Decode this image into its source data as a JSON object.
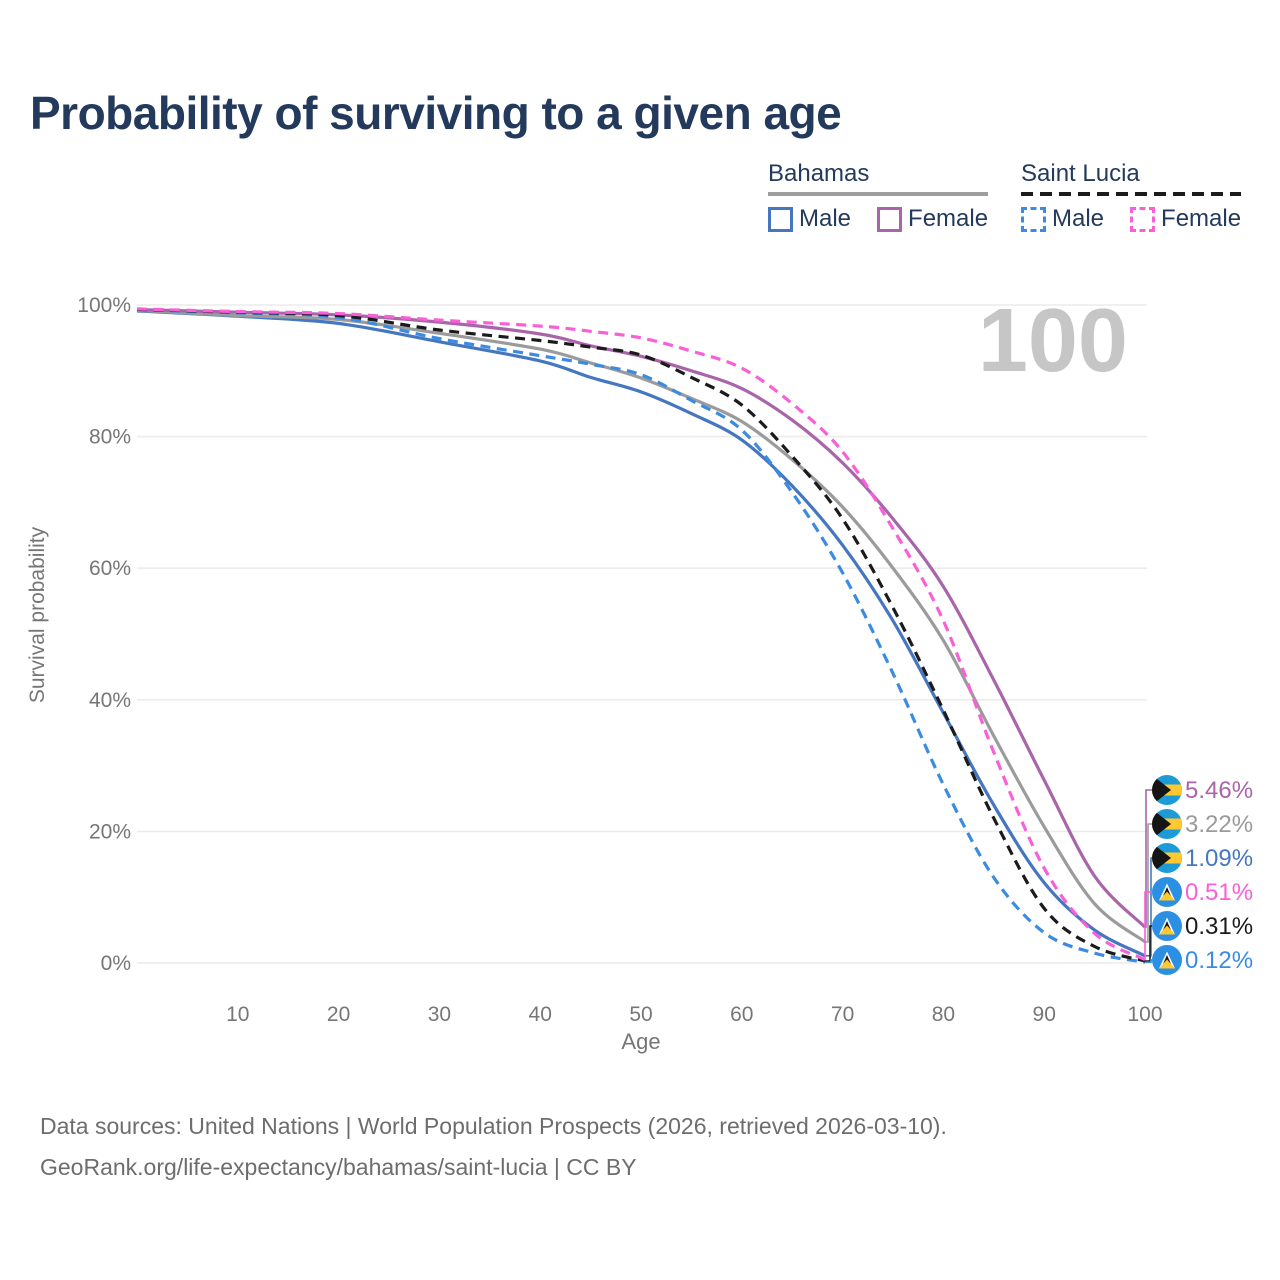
{
  "title": "Probability of surviving to a given age",
  "legend": {
    "groups": [
      {
        "name": "Bahamas",
        "line_style": "solid",
        "underline_color": "#9e9e9e",
        "items": [
          {
            "label": "Male",
            "color": "#4577c0",
            "dashed": false
          },
          {
            "label": "Female",
            "color": "#a965a9",
            "dashed": false
          }
        ]
      },
      {
        "name": "Saint Lucia",
        "line_style": "dashed",
        "underline_color": "#1b1b1b",
        "items": [
          {
            "label": "Male",
            "color": "#3b8be2",
            "dashed": true
          },
          {
            "label": "Female",
            "color": "#f960d8",
            "dashed": true
          }
        ]
      }
    ]
  },
  "watermark": "100",
  "chart_data": {
    "type": "line",
    "title": "Probability of surviving to a given age",
    "xlabel": "Age",
    "ylabel": "Survival probability",
    "xlim": [
      0,
      100
    ],
    "ylim": [
      0,
      100
    ],
    "grid": "horizontal",
    "x_ticks": [
      10,
      20,
      30,
      40,
      50,
      60,
      70,
      80,
      90,
      100
    ],
    "y_tick_labels": [
      "0%",
      "20%",
      "40%",
      "60%",
      "80%",
      "100%"
    ],
    "y_tick_values": [
      0,
      20,
      40,
      60,
      80,
      100
    ],
    "ages": [
      0,
      10,
      20,
      30,
      40,
      45,
      50,
      55,
      60,
      65,
      70,
      75,
      80,
      85,
      90,
      95,
      100
    ],
    "series": [
      {
        "name": "Bahamas Female",
        "country": "bahamas",
        "sex": "female",
        "color": "#a965a9",
        "dashed": false,
        "end_label": "5.46%",
        "values": [
          99.3,
          98.9,
          98.5,
          97.4,
          95.6,
          93.8,
          92.2,
          90.0,
          87.3,
          82.5,
          76.0,
          67.5,
          57.2,
          43.0,
          27.8,
          13.2,
          5.46
        ]
      },
      {
        "name": "Bahamas Both sexes",
        "country": "bahamas",
        "sex": "total",
        "color": "#9b9b9b",
        "dashed": false,
        "end_label": "3.22%",
        "values": [
          99.2,
          98.4,
          97.8,
          95.7,
          93.3,
          91.2,
          88.9,
          85.8,
          82.3,
          76.5,
          69.3,
          60.0,
          49.0,
          34.5,
          20.7,
          9.0,
          3.22
        ]
      },
      {
        "name": "Bahamas Male",
        "country": "bahamas",
        "sex": "male",
        "color": "#4577c0",
        "dashed": false,
        "end_label": "1.09%",
        "values": [
          99.1,
          98.3,
          97.2,
          94.4,
          91.5,
          89.0,
          86.8,
          83.5,
          79.5,
          72.5,
          63.5,
          52.0,
          38.0,
          24.0,
          12.2,
          5.0,
          1.09
        ]
      },
      {
        "name": "Saint Lucia Female",
        "country": "saint-lucia",
        "sex": "female",
        "color": "#f960d8",
        "dashed": true,
        "end_label": "0.51%",
        "values": [
          99.4,
          99.0,
          98.7,
          97.7,
          96.8,
          96.0,
          95.0,
          93.0,
          90.4,
          85.0,
          77.7,
          66.0,
          52.0,
          32.0,
          14.4,
          4.5,
          0.51
        ]
      },
      {
        "name": "Saint Lucia Both sexes",
        "country": "saint-lucia",
        "sex": "total",
        "color": "#1b1b1b",
        "dashed": true,
        "end_label": "0.31%",
        "values": [
          99.35,
          98.9,
          98.4,
          96.2,
          94.6,
          93.6,
          92.4,
          89.0,
          84.8,
          77.0,
          67.5,
          54.0,
          38.4,
          22.0,
          8.3,
          2.5,
          0.31
        ]
      },
      {
        "name": "Saint Lucia Male",
        "country": "saint-lucia",
        "sex": "male",
        "color": "#3b8be2",
        "dashed": true,
        "end_label": "0.12%",
        "values": [
          99.3,
          98.8,
          98.1,
          94.9,
          92.3,
          91.0,
          89.4,
          85.5,
          81.0,
          71.5,
          59.3,
          44.0,
          27.1,
          13.0,
          4.6,
          1.5,
          0.12
        ]
      }
    ],
    "end_labels": [
      "5.46%",
      "3.22%",
      "1.09%",
      "0.51%",
      "0.31%",
      "0.12%"
    ],
    "watermark": "100",
    "legend_position": "top-right"
  },
  "flag_colors": {
    "bahamas": {
      "band": "#1d9bd7",
      "gold": "#fdc830",
      "chevron": "#151515"
    },
    "saint_lucia": {
      "field": "#2b90e3",
      "white": "#ffffff",
      "black": "#151515",
      "gold": "#fdc830"
    }
  },
  "footer": {
    "line1": "Data sources: United Nations | World Population Prospects (2026, retrieved 2026-03-10).",
    "line2": "GeoRank.org/life-expectancy/bahamas/saint-lucia | CC BY"
  }
}
